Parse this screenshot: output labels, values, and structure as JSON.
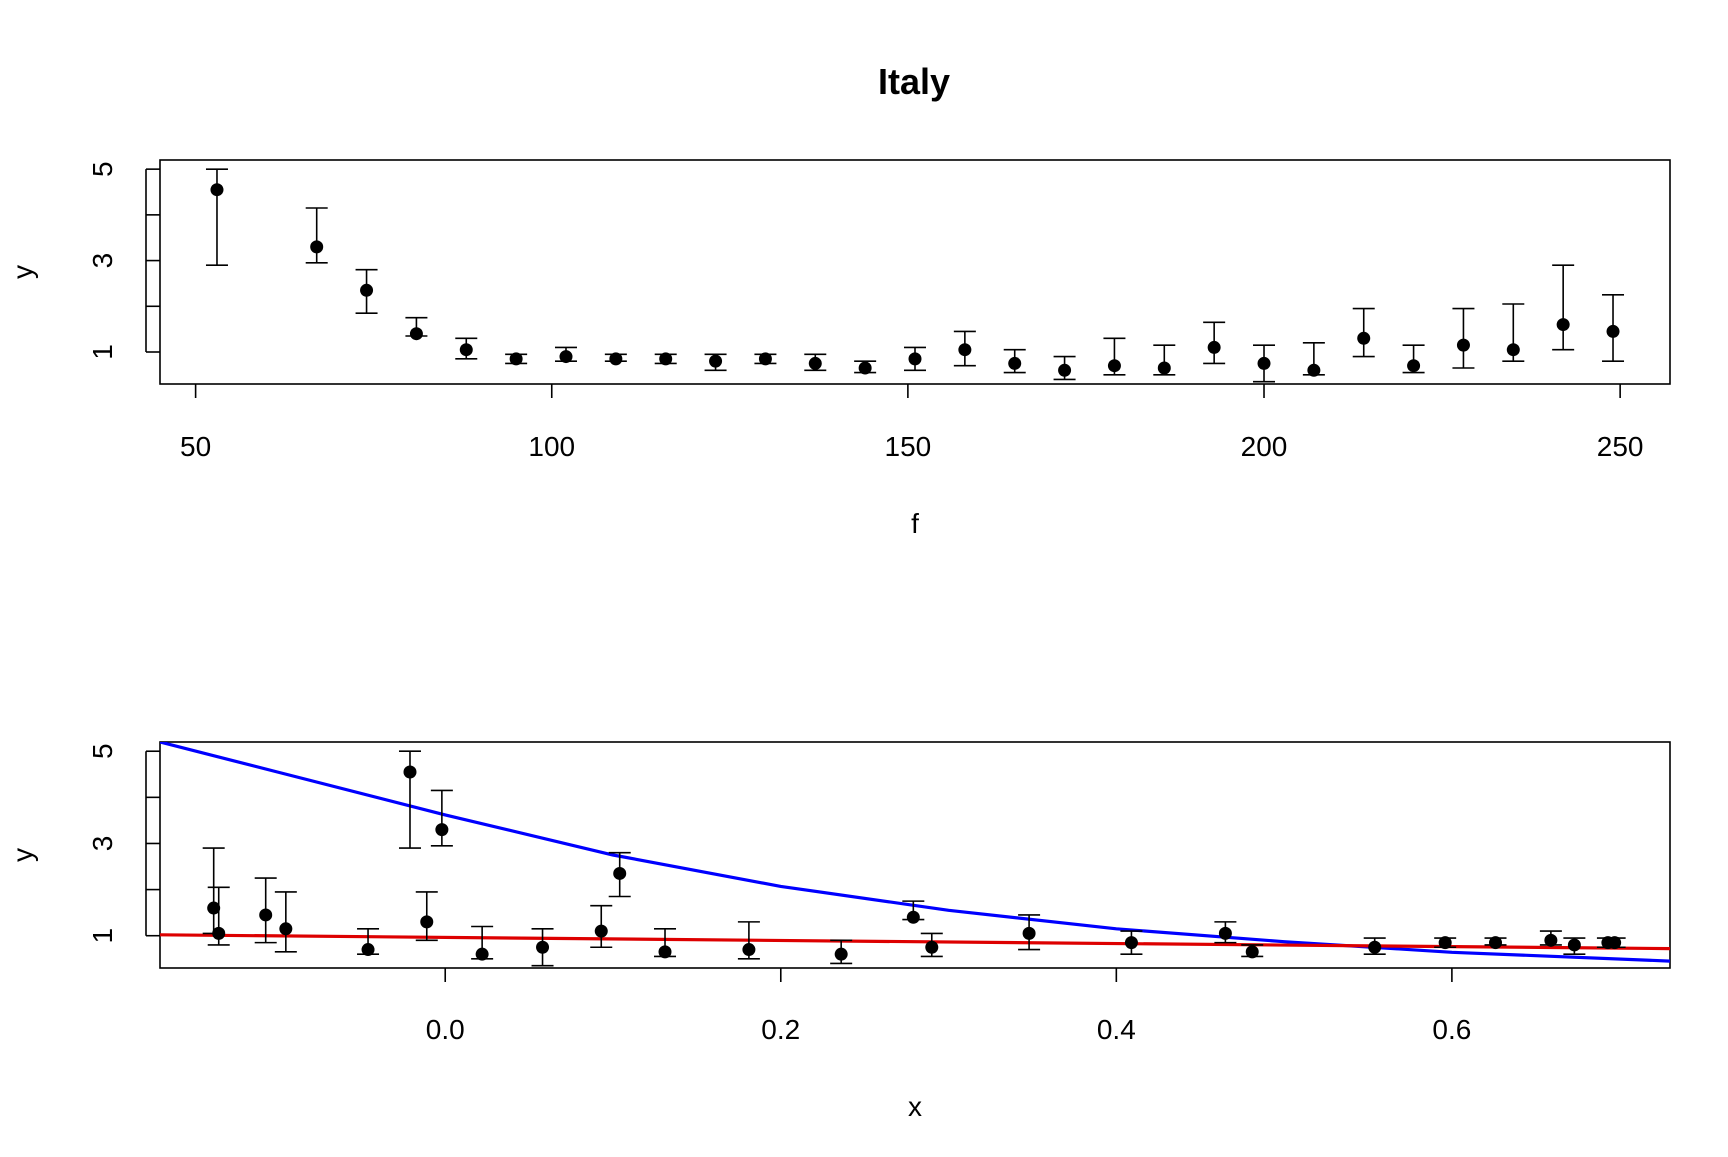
{
  "title": "Italy",
  "colors": {
    "points": "#000000",
    "curve_exponential": "#0000ff",
    "curve_linear": "#dd0000"
  },
  "chart_data": [
    {
      "type": "scatter",
      "title": "Italy",
      "xlabel": "f",
      "ylabel": "y",
      "xlim": [
        45,
        257
      ],
      "ylim": [
        0.3,
        5.2
      ],
      "xticks": [
        "50",
        "100",
        "150",
        "200",
        "250"
      ],
      "yticks": [
        "1",
        "3",
        "5"
      ],
      "error_bars": true,
      "points": [
        {
          "x": 53,
          "y": 4.55,
          "lo": 2.9,
          "hi": 5.0
        },
        {
          "x": 67,
          "y": 3.3,
          "lo": 2.95,
          "hi": 4.15
        },
        {
          "x": 74,
          "y": 2.35,
          "lo": 1.85,
          "hi": 2.8
        },
        {
          "x": 81,
          "y": 1.4,
          "lo": 1.35,
          "hi": 1.75
        },
        {
          "x": 88,
          "y": 1.05,
          "lo": 0.85,
          "hi": 1.3
        },
        {
          "x": 95,
          "y": 0.85,
          "lo": 0.75,
          "hi": 0.95
        },
        {
          "x": 102,
          "y": 0.9,
          "lo": 0.8,
          "hi": 1.1
        },
        {
          "x": 109,
          "y": 0.85,
          "lo": 0.8,
          "hi": 0.95
        },
        {
          "x": 116,
          "y": 0.85,
          "lo": 0.75,
          "hi": 0.95
        },
        {
          "x": 123,
          "y": 0.8,
          "lo": 0.6,
          "hi": 0.95
        },
        {
          "x": 130,
          "y": 0.85,
          "lo": 0.75,
          "hi": 0.95
        },
        {
          "x": 137,
          "y": 0.75,
          "lo": 0.6,
          "hi": 0.95
        },
        {
          "x": 144,
          "y": 0.65,
          "lo": 0.55,
          "hi": 0.8
        },
        {
          "x": 151,
          "y": 0.85,
          "lo": 0.6,
          "hi": 1.1
        },
        {
          "x": 158,
          "y": 1.05,
          "lo": 0.7,
          "hi": 1.45
        },
        {
          "x": 165,
          "y": 0.75,
          "lo": 0.55,
          "hi": 1.05
        },
        {
          "x": 172,
          "y": 0.6,
          "lo": 0.4,
          "hi": 0.9
        },
        {
          "x": 179,
          "y": 0.7,
          "lo": 0.5,
          "hi": 1.3
        },
        {
          "x": 186,
          "y": 0.65,
          "lo": 0.5,
          "hi": 1.15
        },
        {
          "x": 193,
          "y": 1.1,
          "lo": 0.75,
          "hi": 1.65
        },
        {
          "x": 200,
          "y": 0.75,
          "lo": 0.35,
          "hi": 1.15
        },
        {
          "x": 207,
          "y": 0.6,
          "lo": 0.5,
          "hi": 1.2
        },
        {
          "x": 214,
          "y": 1.3,
          "lo": 0.9,
          "hi": 1.95
        },
        {
          "x": 221,
          "y": 0.7,
          "lo": 0.55,
          "hi": 1.15
        },
        {
          "x": 228,
          "y": 1.15,
          "lo": 0.65,
          "hi": 1.95
        },
        {
          "x": 235,
          "y": 1.05,
          "lo": 0.8,
          "hi": 2.05
        },
        {
          "x": 242,
          "y": 1.6,
          "lo": 1.05,
          "hi": 2.9
        },
        {
          "x": 249,
          "y": 1.45,
          "lo": 0.8,
          "hi": 2.25
        }
      ]
    },
    {
      "type": "scatter",
      "title": "",
      "xlabel": "x",
      "ylabel": "y",
      "xlim": [
        -0.17,
        0.73
      ],
      "ylim": [
        0.3,
        5.2
      ],
      "xticks": [
        "0.0",
        "0.2",
        "0.4",
        "0.6"
      ],
      "yticks": [
        "1",
        "3",
        "5"
      ],
      "error_bars": true,
      "points": [
        {
          "x": -0.138,
          "y": 1.6,
          "lo": 1.05,
          "hi": 2.9
        },
        {
          "x": -0.135,
          "y": 1.05,
          "lo": 0.8,
          "hi": 2.05
        },
        {
          "x": -0.107,
          "y": 1.45,
          "lo": 0.85,
          "hi": 2.25
        },
        {
          "x": -0.095,
          "y": 1.15,
          "lo": 0.65,
          "hi": 1.95
        },
        {
          "x": -0.046,
          "y": 0.7,
          "lo": 0.6,
          "hi": 1.15
        },
        {
          "x": -0.021,
          "y": 4.55,
          "lo": 2.9,
          "hi": 5.0
        },
        {
          "x": -0.011,
          "y": 1.3,
          "lo": 0.9,
          "hi": 1.95
        },
        {
          "x": -0.002,
          "y": 3.3,
          "lo": 2.95,
          "hi": 4.15
        },
        {
          "x": 0.022,
          "y": 0.6,
          "lo": 0.5,
          "hi": 1.2
        },
        {
          "x": 0.058,
          "y": 0.75,
          "lo": 0.35,
          "hi": 1.15
        },
        {
          "x": 0.093,
          "y": 1.1,
          "lo": 0.75,
          "hi": 1.65
        },
        {
          "x": 0.104,
          "y": 2.35,
          "lo": 1.85,
          "hi": 2.8
        },
        {
          "x": 0.131,
          "y": 0.65,
          "lo": 0.55,
          "hi": 1.15
        },
        {
          "x": 0.181,
          "y": 0.7,
          "lo": 0.5,
          "hi": 1.3
        },
        {
          "x": 0.236,
          "y": 0.6,
          "lo": 0.4,
          "hi": 0.9
        },
        {
          "x": 0.279,
          "y": 1.4,
          "lo": 1.35,
          "hi": 1.75
        },
        {
          "x": 0.29,
          "y": 0.75,
          "lo": 0.55,
          "hi": 1.05
        },
        {
          "x": 0.348,
          "y": 1.05,
          "lo": 0.7,
          "hi": 1.45
        },
        {
          "x": 0.409,
          "y": 0.85,
          "lo": 0.6,
          "hi": 1.1
        },
        {
          "x": 0.465,
          "y": 1.05,
          "lo": 0.85,
          "hi": 1.3
        },
        {
          "x": 0.481,
          "y": 0.65,
          "lo": 0.55,
          "hi": 0.8
        },
        {
          "x": 0.554,
          "y": 0.75,
          "lo": 0.6,
          "hi": 0.95
        },
        {
          "x": 0.596,
          "y": 0.85,
          "lo": 0.75,
          "hi": 0.95
        },
        {
          "x": 0.626,
          "y": 0.85,
          "lo": 0.8,
          "hi": 0.95
        },
        {
          "x": 0.659,
          "y": 0.9,
          "lo": 0.8,
          "hi": 1.1
        },
        {
          "x": 0.673,
          "y": 0.8,
          "lo": 0.6,
          "hi": 0.95
        },
        {
          "x": 0.693,
          "y": 0.85,
          "lo": 0.75,
          "hi": 0.95
        },
        {
          "x": 0.697,
          "y": 0.85,
          "lo": 0.75,
          "hi": 0.95
        }
      ],
      "curves": [
        {
          "color": "#0000ff",
          "x": [
            -0.17,
            -0.1,
            0.0,
            0.1,
            0.2,
            0.3,
            0.4,
            0.5,
            0.6,
            0.73
          ],
          "y": [
            5.2,
            4.55,
            3.62,
            2.75,
            2.07,
            1.55,
            1.15,
            0.87,
            0.64,
            0.45
          ]
        },
        {
          "color": "#dd0000",
          "x": [
            -0.17,
            0.73
          ],
          "y": [
            1.02,
            0.72
          ]
        }
      ]
    }
  ]
}
